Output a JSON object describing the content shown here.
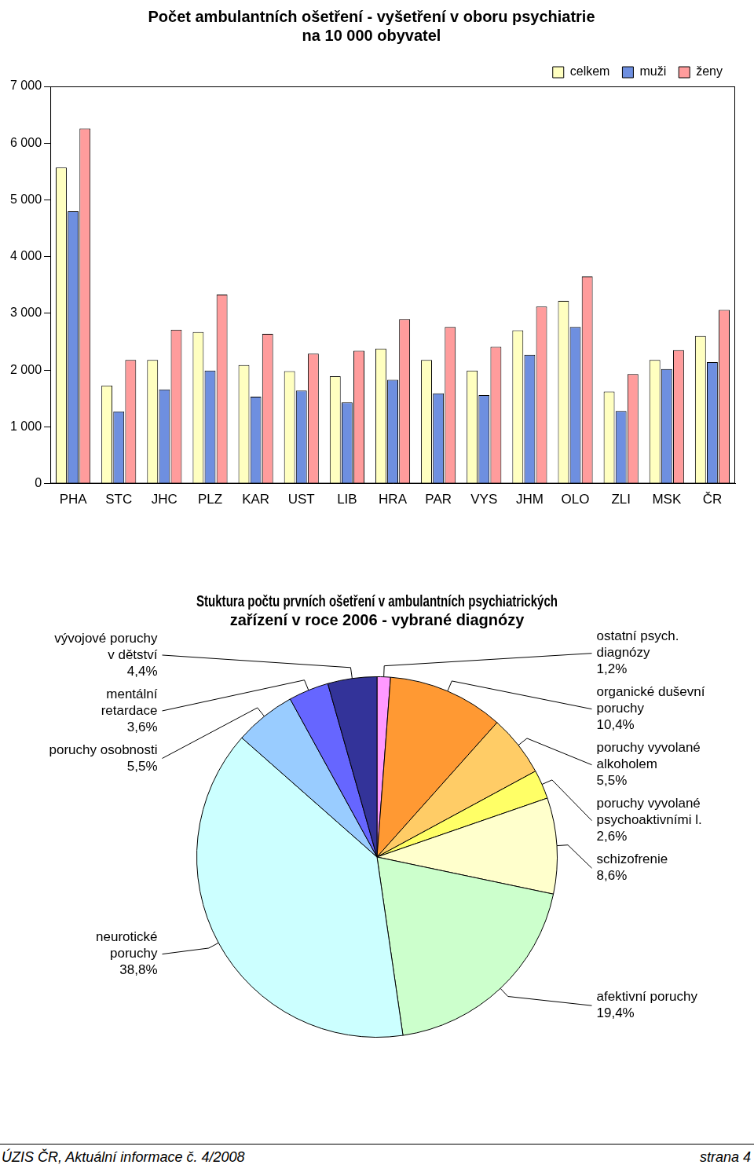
{
  "chart_data": [
    {
      "type": "bar",
      "title": [
        "Počet ambulantních ošetření - vyšetření v oboru psychiatrie",
        "na 10 000 obyvatel"
      ],
      "categories": [
        "PHA",
        "STC",
        "JHC",
        "PLZ",
        "KAR",
        "UST",
        "LIB",
        "HRA",
        "PAR",
        "VYS",
        "JHM",
        "OLO",
        "ZLI",
        "MSK",
        "ČR"
      ],
      "series": [
        {
          "name": "celkem",
          "color": "#ffffc0",
          "values": [
            5570,
            1730,
            2180,
            2670,
            2090,
            1980,
            1890,
            2380,
            2180,
            1990,
            2700,
            3220,
            1620,
            2180,
            2600
          ]
        },
        {
          "name": "muži",
          "color": "#6e8fe0",
          "values": [
            4800,
            1270,
            1660,
            1990,
            1530,
            1640,
            1430,
            1830,
            1590,
            1560,
            2270,
            2760,
            1280,
            2020,
            2140
          ]
        },
        {
          "name": "ženy",
          "color": "#ff9c9c",
          "values": [
            6260,
            2180,
            2710,
            3330,
            2640,
            2290,
            2340,
            2900,
            2760,
            2410,
            3120,
            3650,
            1930,
            2350,
            3060
          ]
        }
      ],
      "ylim": [
        0,
        7000
      ],
      "yticks": [
        0,
        {
          "value": 1000,
          "label": "1 000"
        },
        {
          "value": 2000,
          "label": "2 000"
        },
        {
          "value": 3000,
          "label": "3 000"
        },
        {
          "value": 4000,
          "label": "4 000"
        },
        {
          "value": 5000,
          "label": "5 000"
        },
        {
          "value": 6000,
          "label": "6 000"
        },
        {
          "value": 7000,
          "label": "7 000"
        }
      ],
      "grid": false,
      "legend": "upper right"
    },
    {
      "type": "pie",
      "title": [
        "Stuktura počtu prvních ošetření v ambulantních psychiatrických",
        "zařízení v roce 2006 - vybrané diagnózy"
      ],
      "categories": [
        "ostatní psych. diagnózy",
        "organické duševní poruchy",
        "poruchy vyvolané alkoholem",
        "poruchy vyvolané psychoaktivními l.",
        "schizofrenie",
        "afektivní poruchy",
        "neurotické poruchy",
        "poruchy osobnosti",
        "mentální retardace",
        "vývojové poruchy v dětství"
      ],
      "values": [
        1.2,
        10.4,
        5.5,
        2.6,
        8.6,
        19.4,
        38.8,
        5.5,
        3.6,
        4.4
      ],
      "value_labels": [
        "1,2%",
        "10,4%",
        "5,5%",
        "2,6%",
        "8,6%",
        "19,4%",
        "38,8%",
        "5,5%",
        "3,6%",
        "4,4%"
      ],
      "colors": [
        "#ff99ff",
        "#ff9933",
        "#ffcc66",
        "#ffff66",
        "#ffffcc",
        "#ccffcc",
        "#ccffff",
        "#99ccff",
        "#6666ff",
        "#333399"
      ],
      "data_labels": true
    }
  ],
  "footer": {
    "source": "ÚZIS ČR, Aktuální informace č. 4/2008",
    "page": "strana 4"
  }
}
